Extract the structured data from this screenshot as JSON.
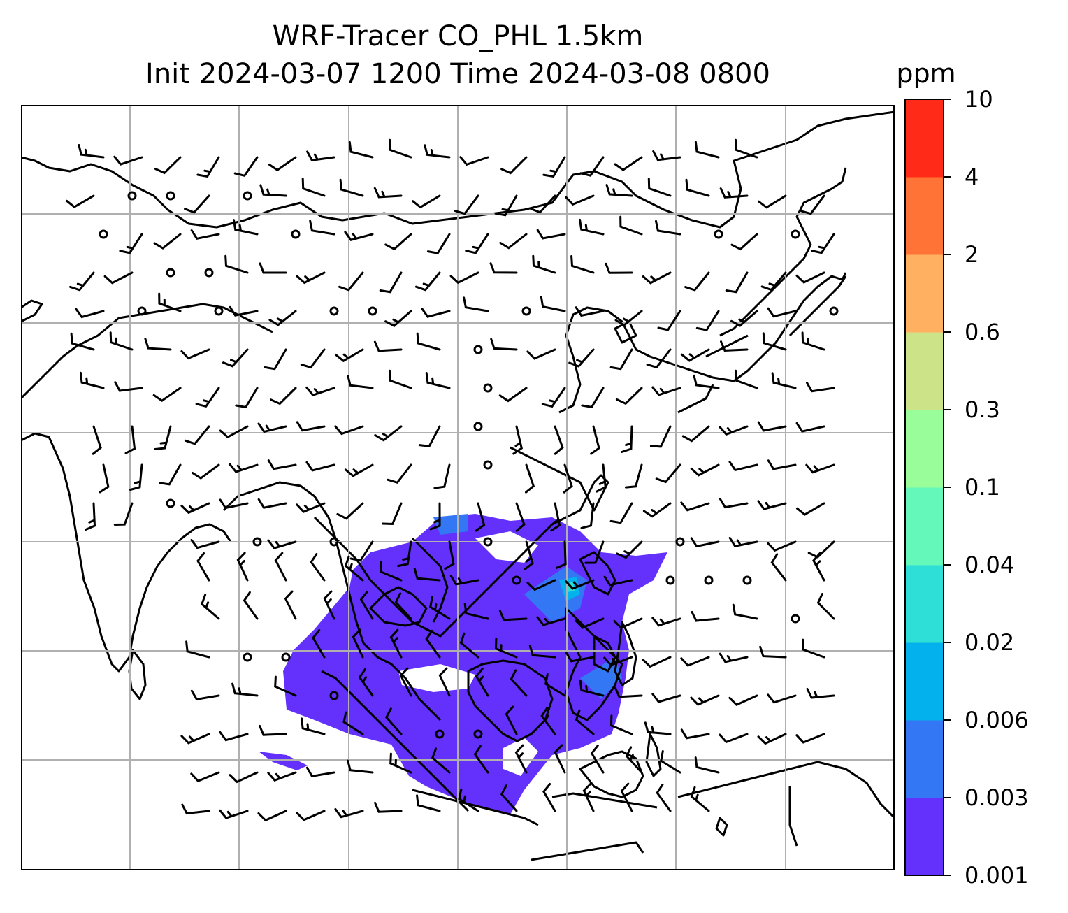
{
  "title": {
    "line1": "WRF-Tracer CO_PHL 1.5km",
    "line2": "Init 2024-03-07 1200 Time 2024-03-08 0800"
  },
  "colorbar": {
    "unit": "ppm",
    "levels": [
      "0.001",
      "0.003",
      "0.006",
      "0.02",
      "0.04",
      "0.1",
      "0.3",
      "0.6",
      "2",
      "4",
      "10"
    ],
    "colors": [
      "#6331fb",
      "#3377f5",
      "#03b2ec",
      "#2ddfd6",
      "#64f8ba",
      "#99fe9a",
      "#cde388",
      "#ffb161",
      "#ff7336",
      "#ff2a17"
    ]
  },
  "map": {
    "grid": true,
    "features": [
      "coastlines",
      "country-borders",
      "gridlines",
      "wind-barbs",
      "tracer-plume"
    ]
  }
}
